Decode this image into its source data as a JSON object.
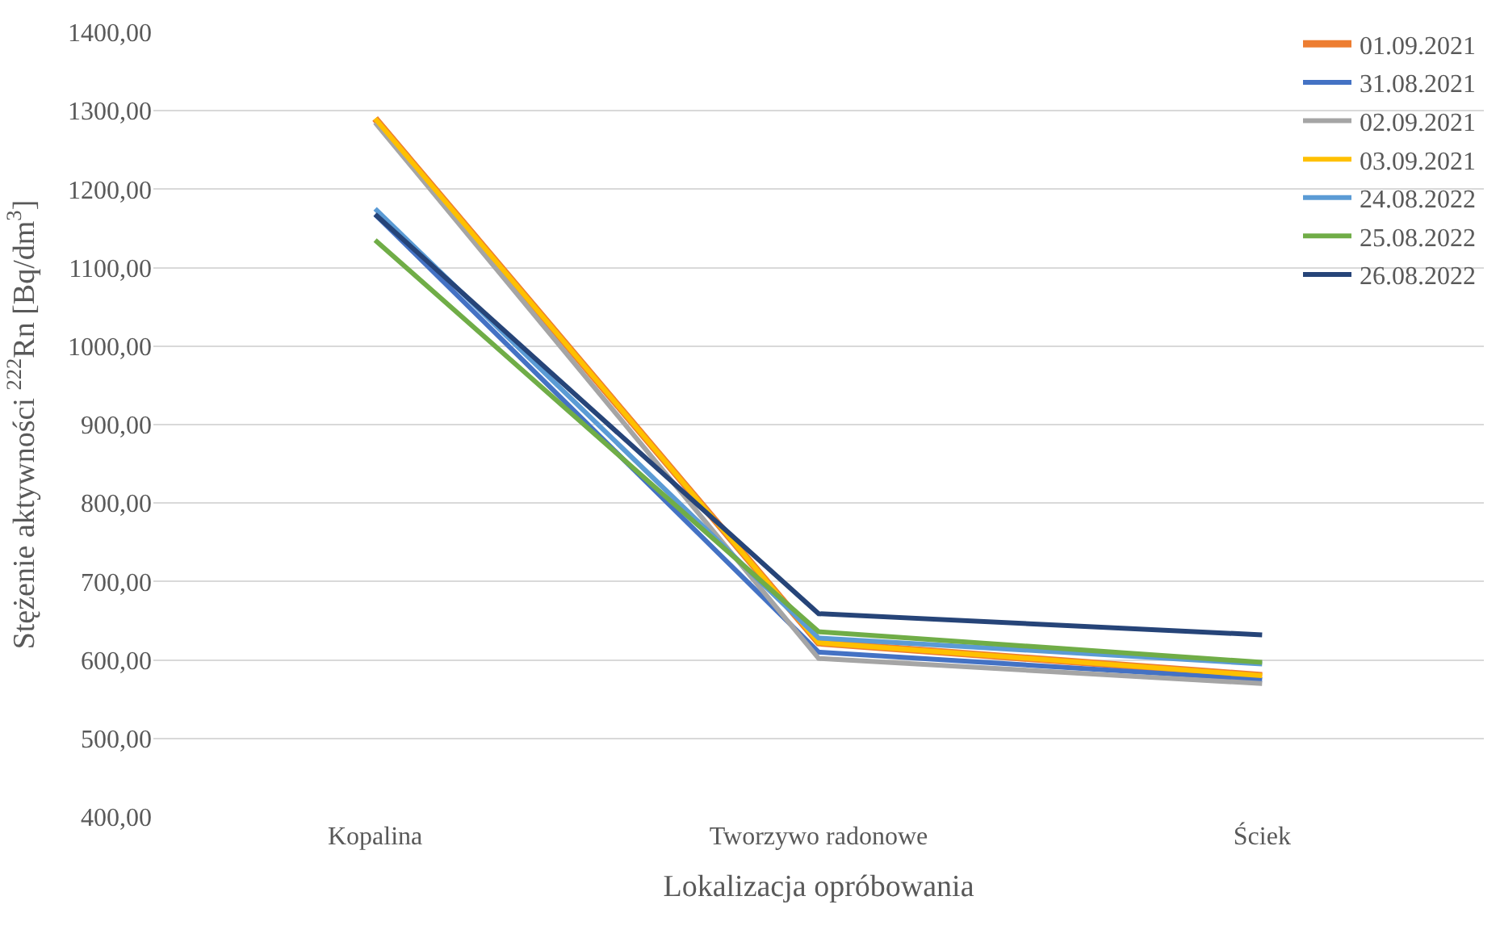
{
  "chart_data": {
    "type": "line",
    "xlabel": "Lokalizacja opróbowania",
    "ylabel": "Stężenie aktywności $^{222}$Rn [Bq/dm$^{3}$]",
    "categories": [
      "Kopalina",
      "Tworzywo radonowe",
      "Ściek"
    ],
    "ylim": [
      400,
      1400
    ],
    "yticks": [
      {
        "value": 400,
        "label": "400,00"
      },
      {
        "value": 500,
        "label": "500,00"
      },
      {
        "value": 600,
        "label": "600,00"
      },
      {
        "value": 700,
        "label": "700,00"
      },
      {
        "value": 800,
        "label": "800,00"
      },
      {
        "value": 900,
        "label": "900,00"
      },
      {
        "value": 1000,
        "label": "1000,00"
      },
      {
        "value": 1100,
        "label": "1100,00"
      },
      {
        "value": 1200,
        "label": "1200,00"
      },
      {
        "value": 1300,
        "label": "1300,00"
      },
      {
        "value": 1400,
        "label": "1400,00"
      }
    ],
    "grid": "y",
    "legend": "top right",
    "series": [
      {
        "name": "01.09.2021",
        "color": "#ed7d31",
        "values": [
          1290,
          622,
          580
        ]
      },
      {
        "name": "31.08.2021",
        "color": "#4472c4",
        "values": [
          1168,
          610,
          575
        ]
      },
      {
        "name": "02.09.2021",
        "color": "#a5a5a5",
        "values": [
          1285,
          602,
          570
        ]
      },
      {
        "name": "03.09.2021",
        "color": "#ffc000",
        "values": [
          1290,
          622,
          580
        ]
      },
      {
        "name": "24.08.2022",
        "color": "#5b9bd5",
        "values": [
          1175,
          628,
          595
        ]
      },
      {
        "name": "25.08.2022",
        "color": "#70ad47",
        "values": [
          1135,
          636,
          597
        ]
      },
      {
        "name": "26.08.2022",
        "color": "#264478",
        "values": [
          1168,
          659,
          632
        ]
      }
    ]
  }
}
